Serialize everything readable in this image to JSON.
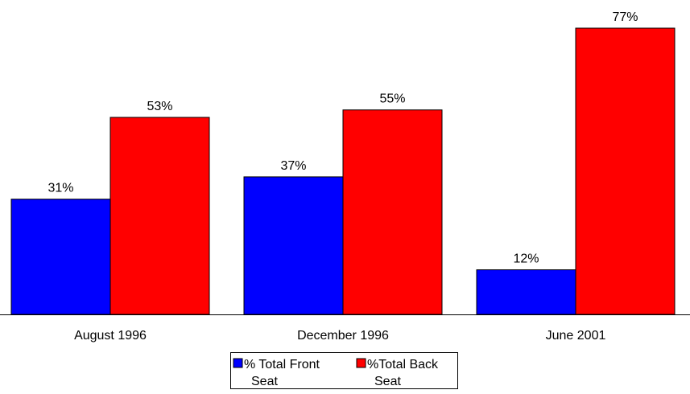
{
  "chart_data": {
    "type": "bar",
    "categories": [
      "August 1996",
      "December 1996",
      "June 2001"
    ],
    "series": [
      {
        "name": "% Total Front Seat",
        "legend_lines": [
          "% Total Front",
          "Seat"
        ],
        "values": [
          31,
          37,
          12
        ],
        "labels": [
          "31%",
          "37%",
          "12%"
        ],
        "color": "#0000ff"
      },
      {
        "name": "%Total Back Seat",
        "legend_lines": [
          "%Total Back",
          "Seat"
        ],
        "values": [
          53,
          55,
          77
        ],
        "labels": [
          "53%",
          "55%",
          "77%"
        ],
        "color": "#ff0000"
      }
    ],
    "title": "",
    "xlabel": "",
    "ylabel": "",
    "ylim": [
      0,
      77
    ],
    "grid": false,
    "legend": "bottom-center"
  }
}
